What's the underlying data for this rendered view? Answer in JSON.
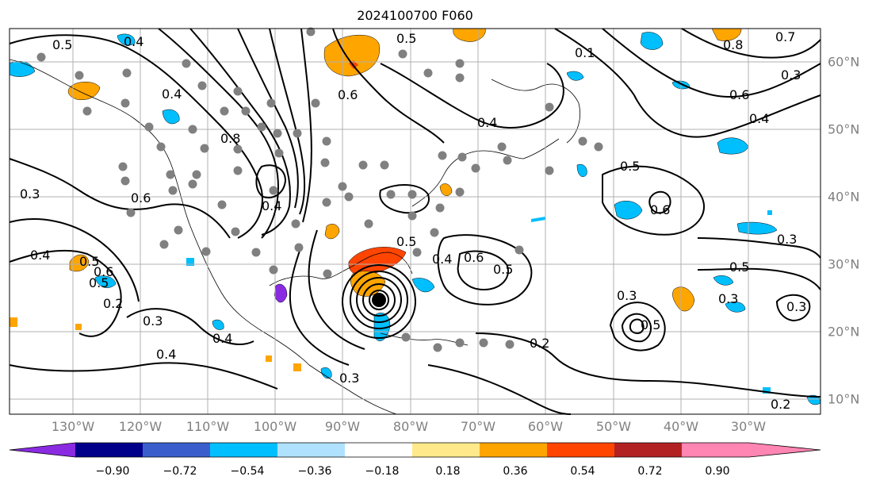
{
  "title": "2024100700 F060",
  "lon_labels": [
    "130°W",
    "120°W",
    "110°W",
    "100°W",
    "90°W",
    "80°W",
    "70°W",
    "60°W",
    "50°W",
    "40°W",
    "30°W"
  ],
  "lat_labels": [
    "60°N",
    "50°N",
    "40°N",
    "30°N",
    "20°N",
    "10°N"
  ],
  "colorbar": {
    "ticks": [
      "−0.90",
      "−0.72",
      "−0.54",
      "−0.36",
      "−0.18",
      "0.18",
      "0.36",
      "0.54",
      "0.72",
      "0.90"
    ],
    "colors": [
      "#8a2be2",
      "#00008b",
      "#3a5fcd",
      "#00bfff",
      "#b0e2ff",
      "#ffffff",
      "#ffe98a",
      "#ffa500",
      "#ff4500",
      "#b22222",
      "#ff85b3"
    ]
  },
  "contour_labels": [
    "0.5",
    "0.4",
    "0.4",
    "0.6",
    "0.5",
    "0.4",
    "0.3",
    "0.8",
    "0.7",
    "0.6",
    "0.8",
    "0.4",
    "0.5",
    "0.5",
    "0.5",
    "0.3",
    "0.3",
    "0.4",
    "0.5",
    "0.6",
    "0.4",
    "0.6",
    "0.3",
    "0.4",
    "0.2",
    "0.3",
    "0.4",
    "0.3",
    "0.5",
    "0.6",
    "0.5",
    "0.3",
    "0.5",
    "0.2",
    "0.2",
    "0.3",
    "0.4",
    "0.6",
    "0.1"
  ],
  "colors": {
    "contour": "#000000",
    "grid": "#b0b0b0",
    "dots": "#808080",
    "axis_labels": "#808080"
  }
}
